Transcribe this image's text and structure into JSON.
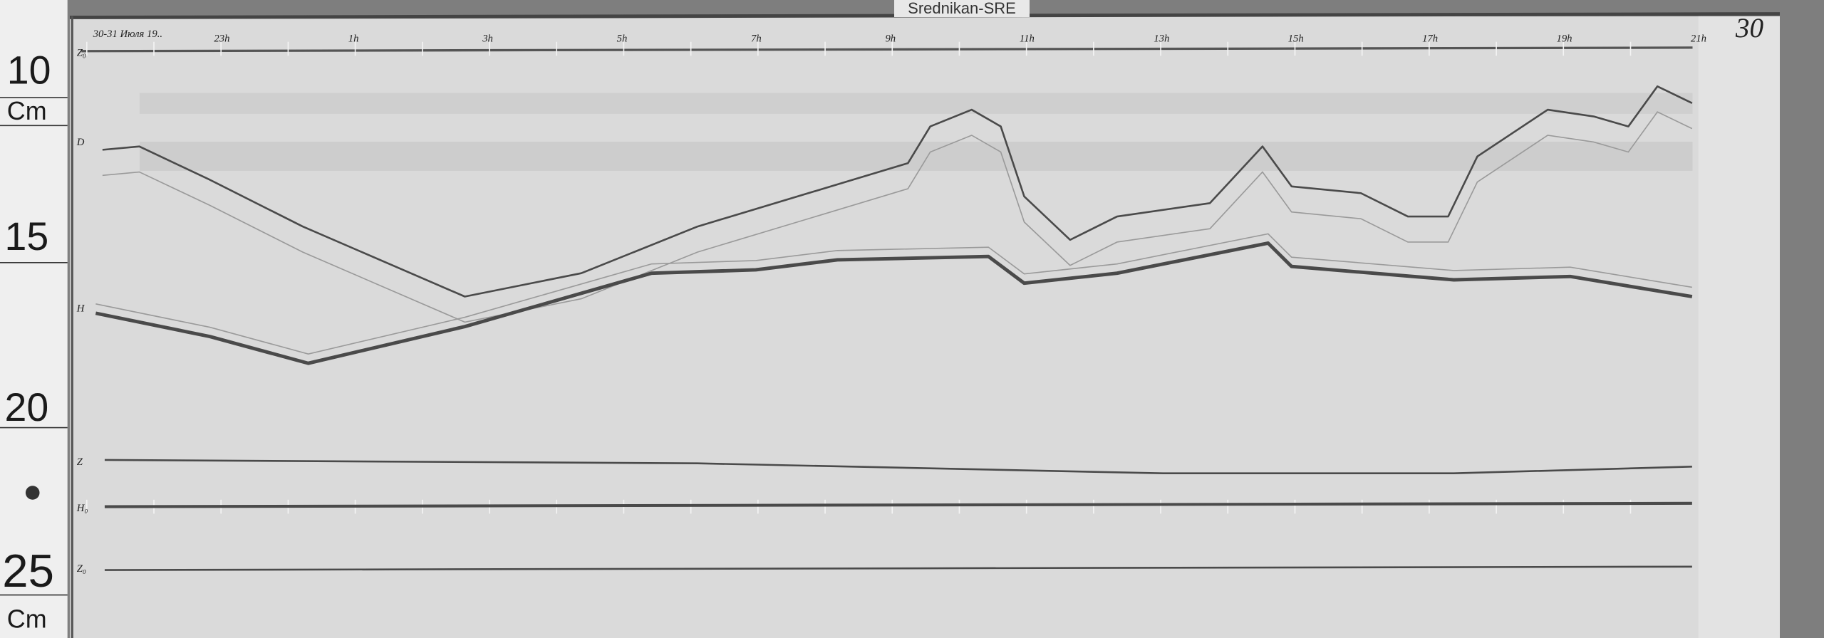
{
  "header": {
    "station": "Srednikan-SRE",
    "sheet_number": "30",
    "date_note": "30-31 Июля 19.."
  },
  "ruler": {
    "labels": [
      "10",
      "Cm",
      "15",
      "20",
      "25",
      "Cm"
    ]
  },
  "colors": {
    "paper": "#d9d9d9",
    "trace": "#4a4a4a",
    "trace_faint": "#9a9a9a",
    "ruler": "#f0f0f0"
  },
  "chart_data": {
    "type": "line",
    "title": "",
    "x_tick_labels": [
      "23h",
      "1h",
      "3h",
      "5h",
      "7h",
      "9h",
      "11h",
      "13h",
      "15h",
      "17h",
      "19h",
      "21h"
    ],
    "x_unit": "hours UT (time of day)",
    "y_unit": "cm on sheet (from left ruler)",
    "y_range": [
      10,
      25
    ],
    "grid": false,
    "trace_labels": [
      "Z₀",
      "D",
      "H",
      "Z",
      "H₀",
      "Z₀"
    ],
    "series": [
      {
        "name": "D",
        "points": [
          [
            "21:14",
            12.4
          ],
          [
            "21:47",
            12.3
          ],
          [
            "22:50",
            13.3
          ],
          [
            "00:13",
            14.7
          ],
          [
            "02:38",
            16.8
          ],
          [
            "04:22",
            16.1
          ],
          [
            "06:06",
            14.7
          ],
          [
            "09:14",
            12.8
          ],
          [
            "09:34",
            11.7
          ],
          [
            "10:11",
            11.2
          ],
          [
            "10:37",
            11.7
          ],
          [
            "10:58",
            13.8
          ],
          [
            "11:39",
            15.1
          ],
          [
            "12:21",
            14.4
          ],
          [
            "13:44",
            14.0
          ],
          [
            "14:31",
            12.3
          ],
          [
            "14:57",
            13.5
          ],
          [
            "15:59",
            13.7
          ],
          [
            "16:41",
            14.4
          ],
          [
            "17:17",
            14.4
          ],
          [
            "17:43",
            12.6
          ],
          [
            "18:46",
            11.2
          ],
          [
            "19:27",
            11.4
          ],
          [
            "19:58",
            11.7
          ],
          [
            "20:24",
            10.5
          ],
          [
            "20:55",
            11.0
          ]
        ]
      },
      {
        "name": "H",
        "points": [
          [
            "21:08",
            17.3
          ],
          [
            "22:50",
            18.0
          ],
          [
            "00:18",
            18.8
          ],
          [
            "02:38",
            17.7
          ],
          [
            "05:25",
            16.1
          ],
          [
            "06:58",
            16.0
          ],
          [
            "08:11",
            15.7
          ],
          [
            "10:26",
            15.6
          ],
          [
            "10:58",
            16.4
          ],
          [
            "12:21",
            16.1
          ],
          [
            "14:36",
            15.2
          ],
          [
            "14:57",
            15.9
          ],
          [
            "17:22",
            16.3
          ],
          [
            "19:06",
            16.2
          ],
          [
            "20:55",
            16.8
          ]
        ]
      },
      {
        "name": "Z",
        "points": [
          [
            "21:16",
            21.7
          ],
          [
            "06:06",
            21.8
          ],
          [
            "13:02",
            22.1
          ],
          [
            "17:22",
            22.1
          ],
          [
            "20:55",
            21.9
          ]
        ]
      },
      {
        "name": "H₀",
        "points": [
          [
            "21:16",
            23.1
          ],
          [
            "20:55",
            23.0
          ]
        ]
      },
      {
        "name": "Z₀",
        "points": [
          [
            "21:16",
            25.0
          ],
          [
            "20:55",
            24.9
          ]
        ]
      },
      {
        "name": "Z₀ top",
        "points": [
          [
            "21:16",
            9.4
          ],
          [
            "20:55",
            9.3
          ]
        ]
      }
    ]
  }
}
